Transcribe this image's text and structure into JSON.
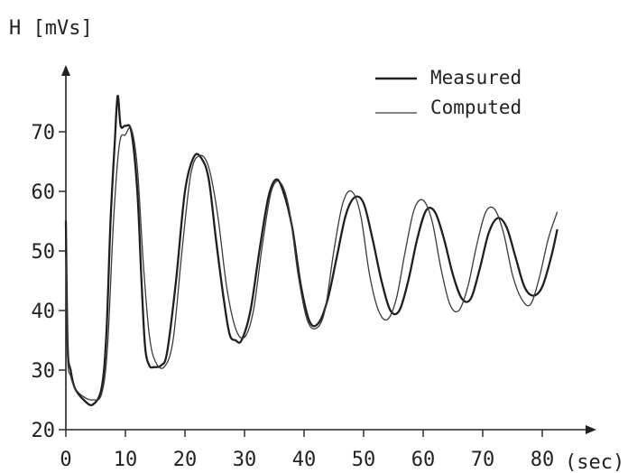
{
  "chart_data": {
    "type": "line",
    "ylabel": "H [mVs]",
    "xlabel": "(sec)",
    "xlim": [
      0,
      86
    ],
    "ylim": [
      20,
      78
    ],
    "x_ticks": [
      0,
      10,
      20,
      30,
      40,
      50,
      60,
      70,
      80
    ],
    "x_tick_labels": [
      "0",
      "10",
      "20",
      "30",
      "40",
      "50",
      "60",
      "70",
      "80"
    ],
    "y_ticks": [
      20,
      30,
      40,
      50,
      60,
      70
    ],
    "y_tick_labels": [
      "20",
      "30",
      "40",
      "50",
      "60",
      "70"
    ],
    "legend_position": "top-right",
    "series": [
      {
        "name": "Measured",
        "style": "thick",
        "color": "#1f1f1f",
        "x": [
          0,
          0.3,
          0.8,
          1.5,
          3,
          4.5,
          6,
          6.8,
          7.5,
          8.2,
          8.7,
          9.2,
          10,
          11,
          12,
          12.7,
          13.3,
          14,
          14.8,
          16,
          17,
          18.5,
          20,
          21.5,
          22.8,
          24,
          25.2,
          26.5,
          27.5,
          28.5,
          29.5,
          31,
          32.5,
          34,
          35.3,
          36.5,
          38,
          39.5,
          41,
          42.5,
          44,
          45.5,
          47,
          48.5,
          50,
          51.5,
          53,
          54.5,
          56,
          57.5,
          59,
          60.5,
          62,
          63.5,
          65,
          66.5,
          68,
          69.5,
          71,
          72.5,
          74,
          75.5,
          77,
          78.5,
          80,
          81.5,
          82.5
        ],
        "y": [
          55,
          34,
          30,
          27,
          25,
          24.2,
          27,
          36,
          55,
          68,
          76,
          71,
          71,
          70,
          60,
          45,
          34,
          30.8,
          30.5,
          30.8,
          33,
          45,
          60,
          65.8,
          65.5,
          62,
          52,
          42,
          36,
          35,
          35,
          40,
          50,
          59,
          62,
          60,
          54,
          44,
          38,
          38,
          42,
          49,
          56,
          59,
          58,
          52,
          45,
          40,
          40,
          45,
          52,
          56.8,
          56.5,
          52,
          46,
          42,
          42,
          47,
          53,
          55.5,
          54,
          49,
          44,
          42.5,
          44,
          49,
          53.5
        ]
      },
      {
        "name": "Computed",
        "style": "thin",
        "color": "#3a3a3a",
        "x": [
          0,
          0.3,
          0.8,
          1.5,
          3,
          4.5,
          6,
          7,
          8,
          9,
          10,
          11,
          12,
          13,
          14,
          15,
          16.5,
          18,
          19.5,
          21,
          22.5,
          24,
          25.5,
          27,
          28.5,
          30,
          31.5,
          33,
          34.5,
          36,
          37.5,
          39,
          40.5,
          42,
          43.5,
          45,
          46.5,
          48,
          49.5,
          51,
          52.5,
          54,
          55.5,
          57,
          58.5,
          60,
          61.5,
          63,
          64.5,
          66,
          67.5,
          69,
          70.5,
          72,
          73.5,
          75,
          76.5,
          78,
          79.5,
          81,
          82.5
        ],
        "y": [
          49,
          32,
          29,
          27,
          25.5,
          25,
          26,
          34,
          55,
          68,
          69.5,
          70.5,
          64,
          48,
          36,
          31.5,
          30.5,
          35,
          50,
          63,
          66,
          64,
          56,
          44,
          37,
          35.5,
          40,
          51,
          60,
          61.5,
          57,
          46,
          38.5,
          37,
          40,
          50,
          58,
          60,
          56,
          46,
          40,
          38.5,
          42,
          50,
          57,
          58.5,
          55,
          47,
          41,
          40,
          44,
          51,
          56.5,
          57,
          53,
          46,
          42,
          41,
          45.5,
          52,
          56.5
        ]
      }
    ]
  }
}
